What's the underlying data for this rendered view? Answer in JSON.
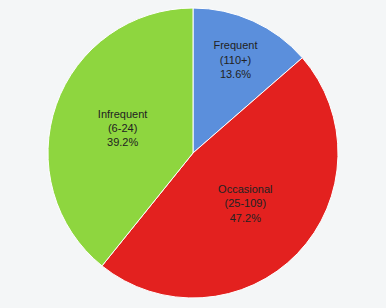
{
  "chart_data": {
    "type": "pie",
    "categories": [
      "Frequent (110+)",
      "Occasional (25-109)",
      "Infrequent (6-24)"
    ],
    "values": [
      13.6,
      47.2,
      39.2
    ],
    "value_labels": [
      "13.6%",
      "47.2%",
      "39.2%"
    ],
    "colors": [
      "#5b8fdc",
      "#e3211f",
      "#8ed63f"
    ],
    "data_labels": true
  }
}
